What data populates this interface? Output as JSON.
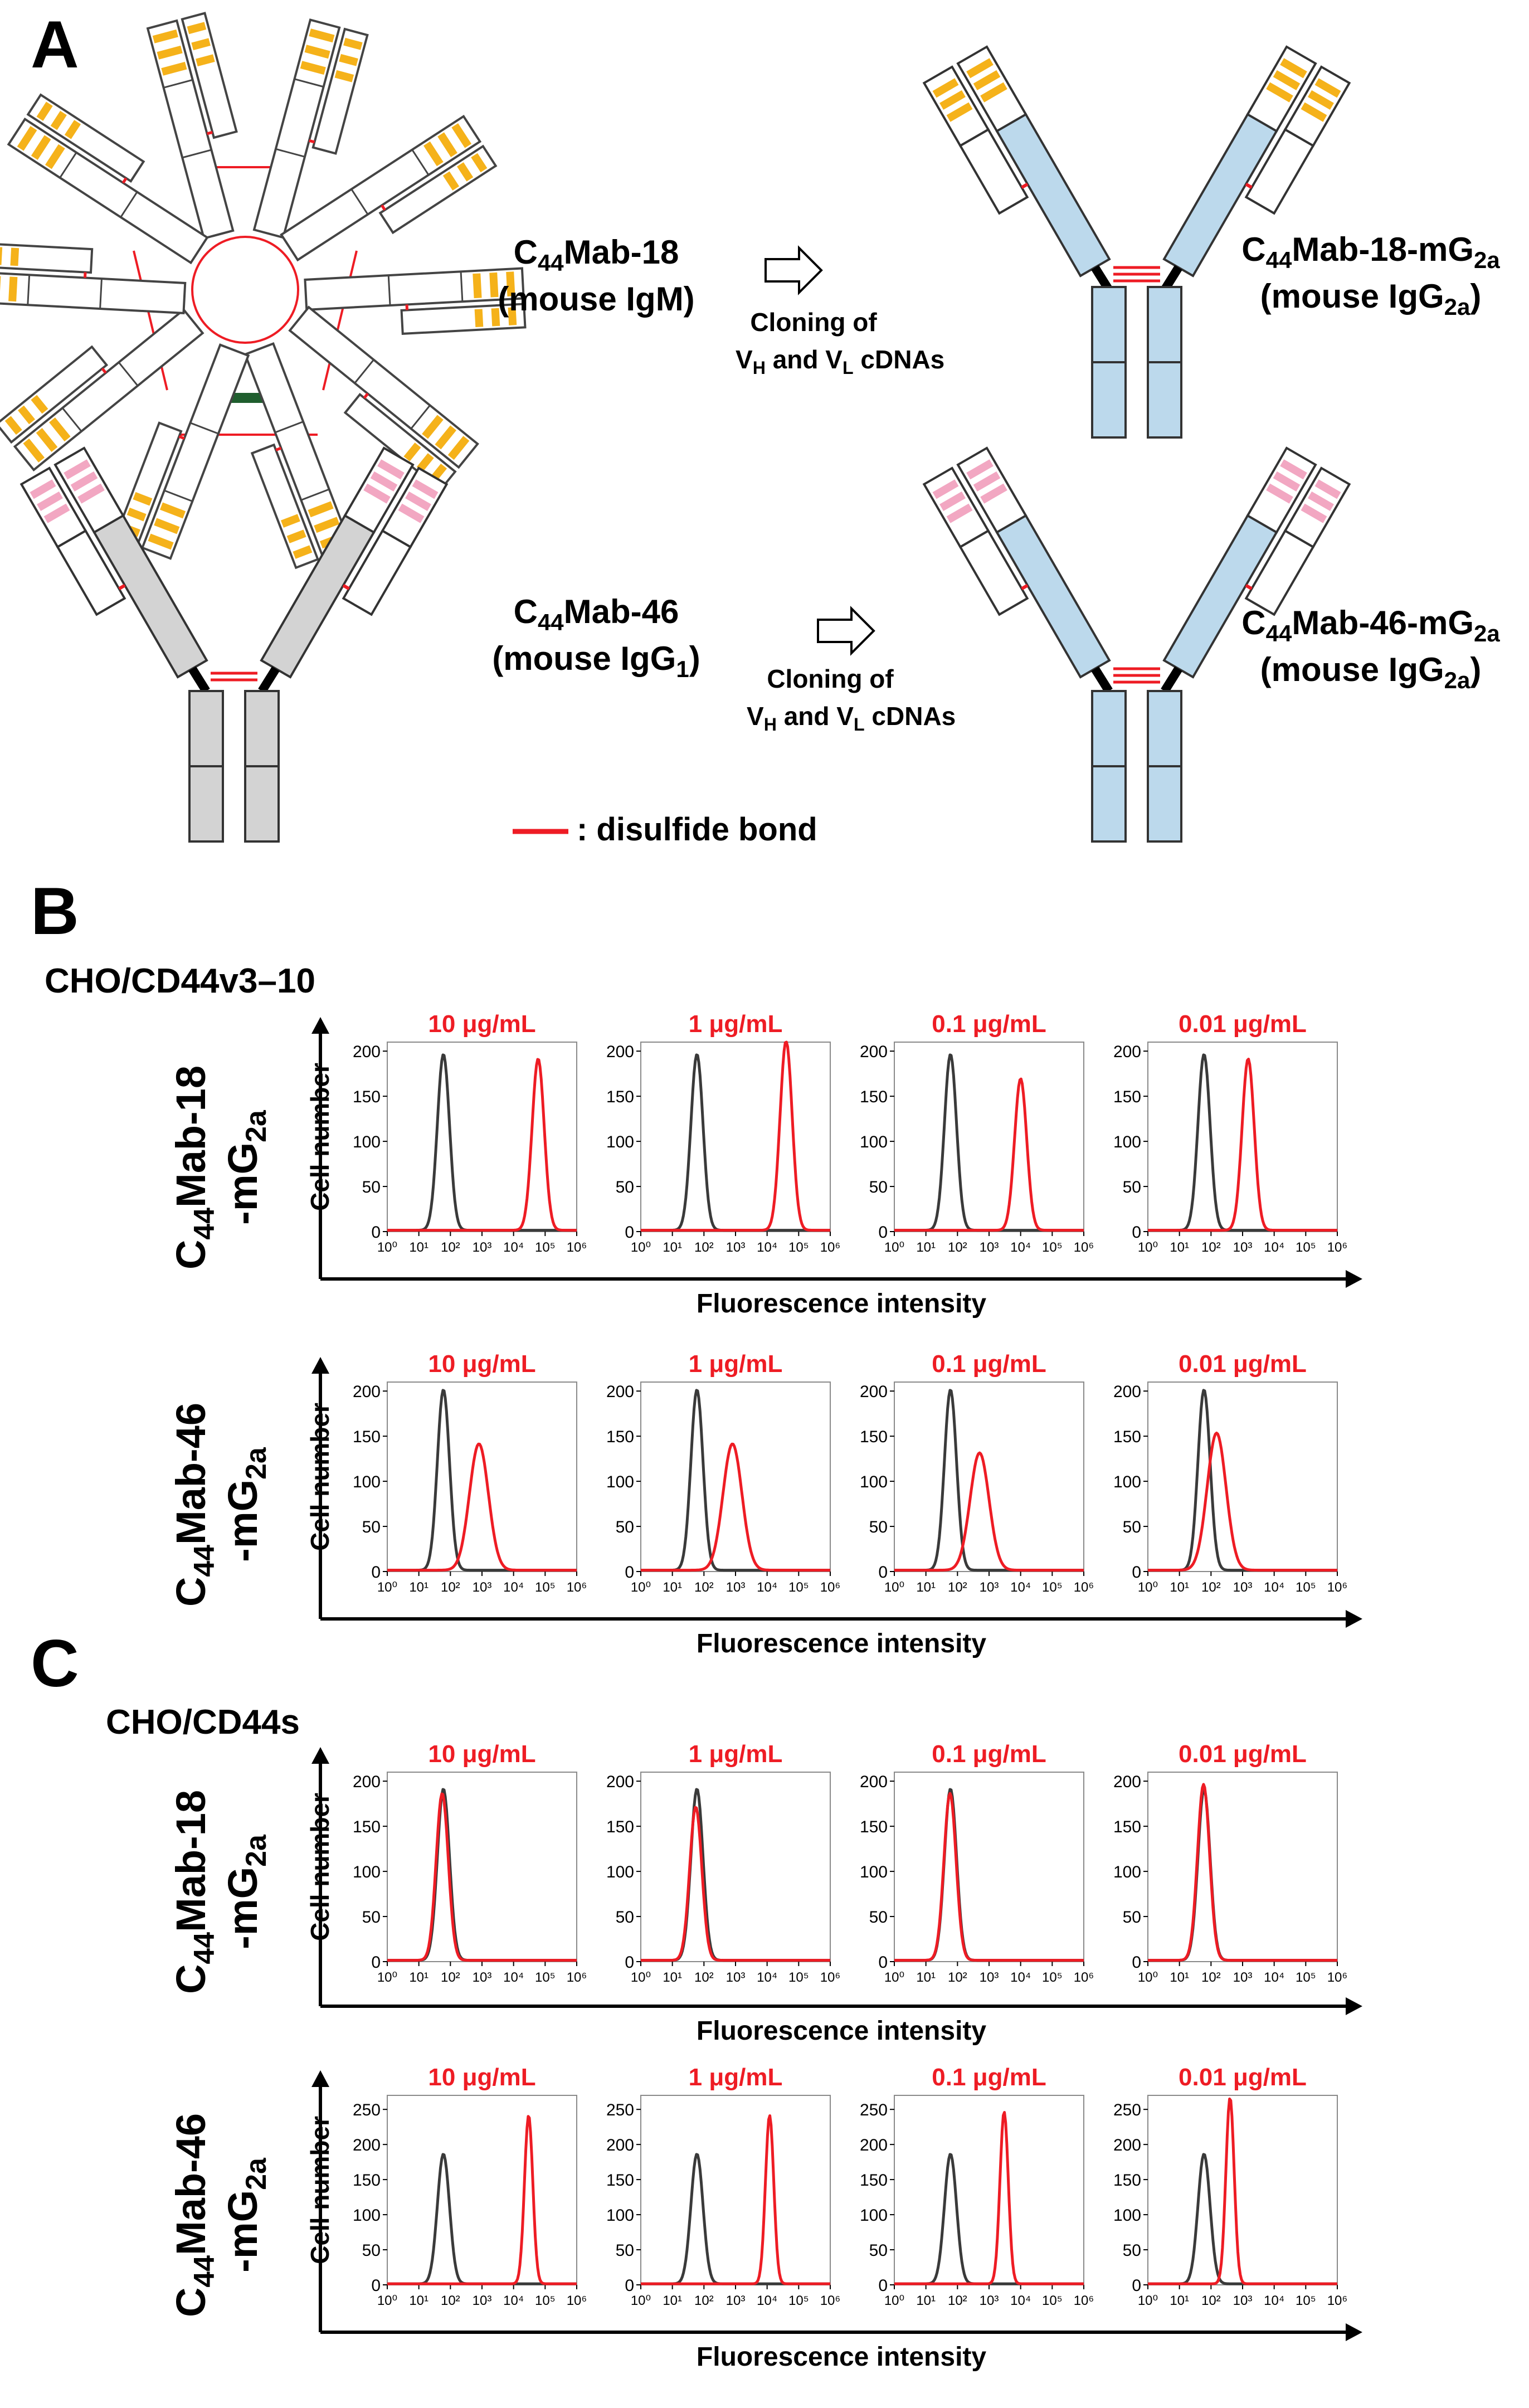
{
  "panels": {
    "A": {
      "letter": "A",
      "row1": {
        "left_name": "C44Mab-18",
        "left_name_sub": "44",
        "left_isotype": "(mouse IgM)",
        "cloning_line1": "Cloning of",
        "cloning_line2": "VH and VL cDNAs",
        "right_name": "C44Mab-18-mG2a",
        "right_isotype": "(mouse IgG2a)"
      },
      "row2": {
        "left_name": "C44Mab-46",
        "left_isotype": "(mouse IgG1)",
        "cloning_line1": "Cloning of",
        "cloning_line2": "VH and VL cDNAs",
        "right_name": "C44Mab-46-mG2a",
        "right_isotype": "(mouse IgG2a)"
      },
      "legend": ": disulfide bond"
    },
    "B": {
      "letter": "B",
      "cell_line": "CHO/CD44v3–10"
    },
    "C": {
      "letter": "C",
      "cell_line": "CHO/CD44s"
    }
  },
  "colors": {
    "disulfide": "#ee1c24",
    "antibody_red": "#ee1c24",
    "control_black": "#3a3a3a",
    "igg2a_fill": "#bcd9ec",
    "igg1_fill": "#d3d3d3",
    "igm_fill": "#ffffff",
    "cdr_igm": "#f5b21a",
    "cdr_igg1": "#f2a7c2"
  },
  "icons": [
    "igm-pentamer-icon",
    "igg-y-antibody-icon",
    "open-right-arrow-icon"
  ],
  "chart_data": [
    {
      "panel": "B",
      "row": "C44Mab-18-mG2a",
      "cell_line": "CHO/CD44v3–10",
      "type": "line",
      "xlabel": "Fluorescence intensity",
      "ylabel": "Cell number",
      "xscale": "log",
      "xlim": [
        1,
        1000000
      ],
      "ylim": [
        0,
        210
      ],
      "yticks": [
        0,
        50,
        100,
        150,
        200
      ],
      "xtick_labels": [
        "10⁰",
        "10¹",
        "10²",
        "10³",
        "10⁴",
        "10⁵",
        "10⁶"
      ],
      "series_colors": [
        "#3a3a3a",
        "#ee1c24"
      ],
      "concentrations": [
        "10 μg/mL",
        "1 μg/mL",
        "0.1 μg/mL",
        "0.01 μg/mL"
      ],
      "peaks": [
        {
          "control": {
            "x": 60,
            "y": 195
          },
          "antibody": {
            "x": 60000,
            "y": 190
          }
        },
        {
          "control": {
            "x": 60,
            "y": 195
          },
          "antibody": {
            "x": 40000,
            "y": 210
          }
        },
        {
          "control": {
            "x": 60,
            "y": 195
          },
          "antibody": {
            "x": 10000,
            "y": 168
          }
        },
        {
          "control": {
            "x": 60,
            "y": 195
          },
          "antibody": {
            "x": 1500,
            "y": 190
          }
        }
      ]
    },
    {
      "panel": "B",
      "row": "C44Mab-46-mG2a",
      "cell_line": "CHO/CD44v3–10",
      "type": "line",
      "xlabel": "Fluorescence intensity",
      "ylabel": "Cell number",
      "xscale": "log",
      "xlim": [
        1,
        1000000
      ],
      "ylim": [
        0,
        210
      ],
      "yticks": [
        0,
        50,
        100,
        150,
        200
      ],
      "xtick_labels": [
        "10⁰",
        "10¹",
        "10²",
        "10³",
        "10⁴",
        "10⁵",
        "10⁶"
      ],
      "series_colors": [
        "#3a3a3a",
        "#ee1c24"
      ],
      "concentrations": [
        "10 μg/mL",
        "1 μg/mL",
        "0.1 μg/mL",
        "0.01 μg/mL"
      ],
      "peaks": [
        {
          "control": {
            "x": 60,
            "y": 200
          },
          "antibody": {
            "x": 800,
            "y": 140
          }
        },
        {
          "control": {
            "x": 60,
            "y": 200
          },
          "antibody": {
            "x": 800,
            "y": 140
          }
        },
        {
          "control": {
            "x": 60,
            "y": 200
          },
          "antibody": {
            "x": 500,
            "y": 130
          }
        },
        {
          "control": {
            "x": 60,
            "y": 200
          },
          "antibody": {
            "x": 150,
            "y": 152
          }
        }
      ]
    },
    {
      "panel": "C",
      "row": "C44Mab-18-mG2a",
      "cell_line": "CHO/CD44s",
      "type": "line",
      "xlabel": "Fluorescence intensity",
      "ylabel": "Cell number",
      "xscale": "log",
      "xlim": [
        1,
        1000000
      ],
      "ylim": [
        0,
        210
      ],
      "yticks": [
        0,
        50,
        100,
        150,
        200
      ],
      "xtick_labels": [
        "10⁰",
        "10¹",
        "10²",
        "10³",
        "10⁴",
        "10⁵",
        "10⁶"
      ],
      "series_colors": [
        "#3a3a3a",
        "#ee1c24"
      ],
      "concentrations": [
        "10 μg/mL",
        "1 μg/mL",
        "0.1 μg/mL",
        "0.01 μg/mL"
      ],
      "peaks": [
        {
          "control": {
            "x": 60,
            "y": 190
          },
          "antibody": {
            "x": 55,
            "y": 185
          }
        },
        {
          "control": {
            "x": 60,
            "y": 190
          },
          "antibody": {
            "x": 55,
            "y": 170
          }
        },
        {
          "control": {
            "x": 60,
            "y": 190
          },
          "antibody": {
            "x": 58,
            "y": 185
          }
        },
        {
          "control": {
            "x": 60,
            "y": 190
          },
          "antibody": {
            "x": 58,
            "y": 195
          }
        }
      ]
    },
    {
      "panel": "C",
      "row": "C44Mab-46-mG2a",
      "cell_line": "CHO/CD44s",
      "type": "line",
      "xlabel": "Fluorescence intensity",
      "ylabel": "Cell number",
      "xscale": "log",
      "xlim": [
        1,
        1000000
      ],
      "ylim": [
        0,
        270
      ],
      "yticks": [
        0,
        50,
        100,
        150,
        200,
        250
      ],
      "xtick_labels": [
        "10⁰",
        "10¹",
        "10²",
        "10³",
        "10⁴",
        "10⁵",
        "10⁶"
      ],
      "series_colors": [
        "#3a3a3a",
        "#ee1c24"
      ],
      "concentrations": [
        "10 μg/mL",
        "1 μg/mL",
        "0.1 μg/mL",
        "0.01 μg/mL"
      ],
      "peaks": [
        {
          "control": {
            "x": 60,
            "y": 185
          },
          "antibody": {
            "x": 30000,
            "y": 240
          }
        },
        {
          "control": {
            "x": 60,
            "y": 185
          },
          "antibody": {
            "x": 12000,
            "y": 240
          }
        },
        {
          "control": {
            "x": 60,
            "y": 185
          },
          "antibody": {
            "x": 3000,
            "y": 245
          }
        },
        {
          "control": {
            "x": 60,
            "y": 185
          },
          "antibody": {
            "x": 400,
            "y": 265
          }
        }
      ]
    }
  ]
}
